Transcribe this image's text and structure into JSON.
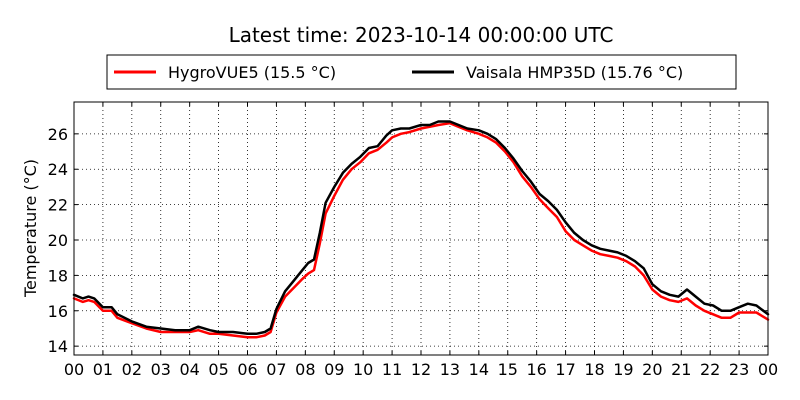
{
  "chart_data": {
    "type": "line",
    "title": "Latest time: 2023-10-14 00:00:00 UTC",
    "xlabel": "",
    "ylabel": "Temperature (°C)",
    "xlim": [
      0,
      24
    ],
    "ylim": [
      13.5,
      27.8
    ],
    "grid": true,
    "legend_position": "top",
    "x_ticks": [
      {
        "value": 0,
        "label": "00"
      },
      {
        "value": 1,
        "label": "01"
      },
      {
        "value": 2,
        "label": "02"
      },
      {
        "value": 3,
        "label": "03"
      },
      {
        "value": 4,
        "label": "04"
      },
      {
        "value": 5,
        "label": "05"
      },
      {
        "value": 6,
        "label": "06"
      },
      {
        "value": 7,
        "label": "07"
      },
      {
        "value": 8,
        "label": "08"
      },
      {
        "value": 9,
        "label": "09"
      },
      {
        "value": 10,
        "label": "10"
      },
      {
        "value": 11,
        "label": "11"
      },
      {
        "value": 12,
        "label": "12"
      },
      {
        "value": 13,
        "label": "13"
      },
      {
        "value": 14,
        "label": "14"
      },
      {
        "value": 15,
        "label": "15"
      },
      {
        "value": 16,
        "label": "16"
      },
      {
        "value": 17,
        "label": "17"
      },
      {
        "value": 18,
        "label": "18"
      },
      {
        "value": 19,
        "label": "19"
      },
      {
        "value": 20,
        "label": "20"
      },
      {
        "value": 21,
        "label": "21"
      },
      {
        "value": 22,
        "label": "22"
      },
      {
        "value": 23,
        "label": "23"
      },
      {
        "value": 24,
        "label": "00"
      }
    ],
    "y_ticks": [
      {
        "value": 14,
        "label": "14"
      },
      {
        "value": 16,
        "label": "16"
      },
      {
        "value": 18,
        "label": "18"
      },
      {
        "value": 20,
        "label": "20"
      },
      {
        "value": 22,
        "label": "22"
      },
      {
        "value": 24,
        "label": "24"
      },
      {
        "value": 26,
        "label": "26"
      }
    ],
    "series": [
      {
        "name": "HygroVUE5 (15.5 °C)",
        "color": "#ff0000",
        "x": [
          0,
          0.3,
          0.5,
          0.7,
          1.0,
          1.3,
          1.5,
          2.0,
          2.5,
          3.0,
          3.5,
          4.0,
          4.3,
          4.7,
          5.0,
          5.5,
          6.0,
          6.3,
          6.6,
          6.8,
          7.0,
          7.3,
          7.6,
          7.9,
          8.1,
          8.3,
          8.5,
          8.7,
          9.0,
          9.3,
          9.6,
          9.9,
          10.2,
          10.5,
          10.8,
          11.0,
          11.3,
          11.6,
          12.0,
          12.3,
          12.6,
          13.0,
          13.3,
          13.6,
          14.0,
          14.3,
          14.6,
          14.9,
          15.2,
          15.5,
          15.8,
          16.1,
          16.4,
          16.7,
          17.0,
          17.3,
          17.6,
          17.9,
          18.2,
          18.5,
          18.8,
          19.1,
          19.4,
          19.7,
          20.0,
          20.3,
          20.6,
          20.9,
          21.2,
          21.5,
          21.8,
          22.1,
          22.4,
          22.7,
          23.0,
          23.3,
          23.6,
          24.0
        ],
        "values": [
          16.7,
          16.5,
          16.6,
          16.5,
          16.0,
          16.0,
          15.6,
          15.3,
          15.0,
          14.8,
          14.8,
          14.8,
          14.9,
          14.7,
          14.7,
          14.6,
          14.5,
          14.5,
          14.6,
          14.8,
          15.9,
          16.8,
          17.3,
          17.8,
          18.1,
          18.3,
          19.8,
          21.5,
          22.5,
          23.4,
          24.0,
          24.4,
          24.9,
          25.1,
          25.5,
          25.8,
          26.0,
          26.1,
          26.3,
          26.4,
          26.5,
          26.6,
          26.4,
          26.2,
          26.0,
          25.8,
          25.5,
          25.0,
          24.4,
          23.6,
          23.0,
          22.3,
          21.8,
          21.3,
          20.5,
          20.0,
          19.7,
          19.4,
          19.2,
          19.1,
          19.0,
          18.8,
          18.5,
          18.0,
          17.2,
          16.8,
          16.6,
          16.5,
          16.7,
          16.3,
          16.0,
          15.8,
          15.6,
          15.6,
          15.9,
          15.9,
          15.9,
          15.5
        ]
      },
      {
        "name": "Vaisala HMP35D (15.76 °C)",
        "color": "#000000",
        "x": [
          0,
          0.3,
          0.5,
          0.7,
          1.0,
          1.3,
          1.5,
          2.0,
          2.5,
          3.0,
          3.5,
          4.0,
          4.3,
          4.7,
          5.0,
          5.5,
          6.0,
          6.3,
          6.6,
          6.8,
          7.0,
          7.3,
          7.6,
          7.9,
          8.1,
          8.3,
          8.5,
          8.7,
          9.0,
          9.3,
          9.6,
          9.9,
          10.2,
          10.5,
          10.8,
          11.0,
          11.3,
          11.6,
          12.0,
          12.3,
          12.6,
          13.0,
          13.3,
          13.6,
          14.0,
          14.3,
          14.6,
          14.9,
          15.2,
          15.5,
          15.8,
          16.1,
          16.4,
          16.7,
          17.0,
          17.3,
          17.6,
          17.9,
          18.2,
          18.5,
          18.8,
          19.1,
          19.4,
          19.7,
          20.0,
          20.3,
          20.6,
          20.9,
          21.2,
          21.5,
          21.8,
          22.1,
          22.4,
          22.7,
          23.0,
          23.3,
          23.6,
          24.0
        ],
        "values": [
          16.9,
          16.7,
          16.8,
          16.7,
          16.2,
          16.2,
          15.8,
          15.4,
          15.1,
          15.0,
          14.9,
          14.9,
          15.1,
          14.9,
          14.8,
          14.8,
          14.7,
          14.7,
          14.8,
          15.0,
          16.1,
          17.1,
          17.7,
          18.3,
          18.7,
          18.9,
          20.4,
          22.1,
          23.0,
          23.8,
          24.3,
          24.7,
          25.2,
          25.3,
          25.9,
          26.2,
          26.3,
          26.3,
          26.5,
          26.5,
          26.7,
          26.7,
          26.5,
          26.3,
          26.2,
          26.0,
          25.7,
          25.2,
          24.6,
          23.9,
          23.3,
          22.6,
          22.2,
          21.7,
          21.0,
          20.4,
          20.0,
          19.7,
          19.5,
          19.4,
          19.3,
          19.1,
          18.8,
          18.4,
          17.5,
          17.1,
          16.9,
          16.8,
          17.2,
          16.8,
          16.4,
          16.3,
          16.0,
          16.0,
          16.2,
          16.4,
          16.3,
          15.8
        ]
      }
    ]
  }
}
